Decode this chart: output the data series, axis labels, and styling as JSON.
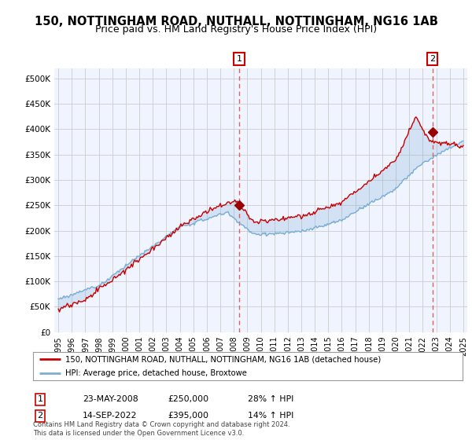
{
  "title": "150, NOTTINGHAM ROAD, NUTHALL, NOTTINGHAM, NG16 1AB",
  "subtitle": "Price paid vs. HM Land Registry's House Price Index (HPI)",
  "ylabel_ticks": [
    "£0",
    "£50K",
    "£100K",
    "£150K",
    "£200K",
    "£250K",
    "£300K",
    "£350K",
    "£400K",
    "£450K",
    "£500K"
  ],
  "ytick_values": [
    0,
    50000,
    100000,
    150000,
    200000,
    250000,
    300000,
    350000,
    400000,
    450000,
    500000
  ],
  "ylim": [
    0,
    520000
  ],
  "xlim_start": 1994.7,
  "xlim_end": 2025.3,
  "xtick_years": [
    1995,
    1996,
    1997,
    1998,
    1999,
    2000,
    2001,
    2002,
    2003,
    2004,
    2005,
    2006,
    2007,
    2008,
    2009,
    2010,
    2011,
    2012,
    2013,
    2014,
    2015,
    2016,
    2017,
    2018,
    2019,
    2020,
    2021,
    2022,
    2023,
    2024,
    2025
  ],
  "sale1_x": 2008.39,
  "sale1_y": 250000,
  "sale1_label": "1",
  "sale2_x": 2022.71,
  "sale2_y": 395000,
  "sale2_label": "2",
  "vline1_x": 2008.39,
  "vline2_x": 2022.71,
  "hpi_color": "#7bafd4",
  "hpi_fill_color": "#ddeeff",
  "price_color": "#cc0000",
  "marker_color": "#990000",
  "vline_color": "#e06060",
  "grid_color": "#cccccc",
  "background_color": "#ffffff",
  "plot_bg_color": "#f0f4ff",
  "legend_line1": "150, NOTTINGHAM ROAD, NUTHALL, NOTTINGHAM, NG16 1AB (detached house)",
  "legend_line2": "HPI: Average price, detached house, Broxtowe",
  "annot1_date": "23-MAY-2008",
  "annot1_price": "£250,000",
  "annot1_hpi": "28% ↑ HPI",
  "annot2_date": "14-SEP-2022",
  "annot2_price": "£395,000",
  "annot2_hpi": "14% ↑ HPI",
  "footnote": "Contains HM Land Registry data © Crown copyright and database right 2024.\nThis data is licensed under the Open Government Licence v3.0.",
  "title_fontsize": 10.5,
  "subtitle_fontsize": 9
}
